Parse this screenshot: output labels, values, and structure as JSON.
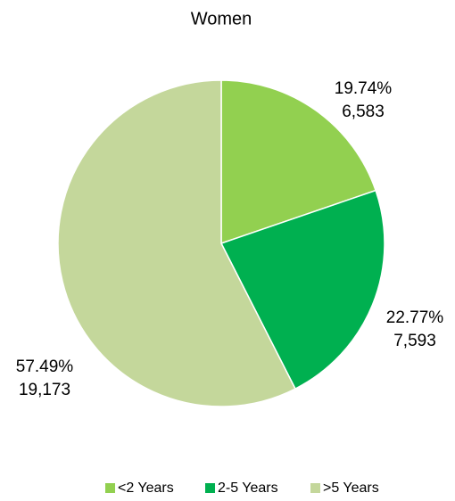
{
  "chart_data": {
    "type": "pie",
    "title": "Women",
    "categories": [
      "<2 Years",
      "2-5 Years",
      ">5 Years"
    ],
    "values": [
      19.74,
      22.77,
      57.49
    ],
    "value_labels": [
      "19.74%",
      "22.77%",
      "57.49%"
    ],
    "counts": [
      6583,
      7593,
      19173
    ],
    "count_labels": [
      "6,583",
      "7,593",
      "19,173"
    ],
    "colors": [
      "#92d050",
      "#00b050",
      "#c4d79b"
    ],
    "legend": "bottom"
  }
}
